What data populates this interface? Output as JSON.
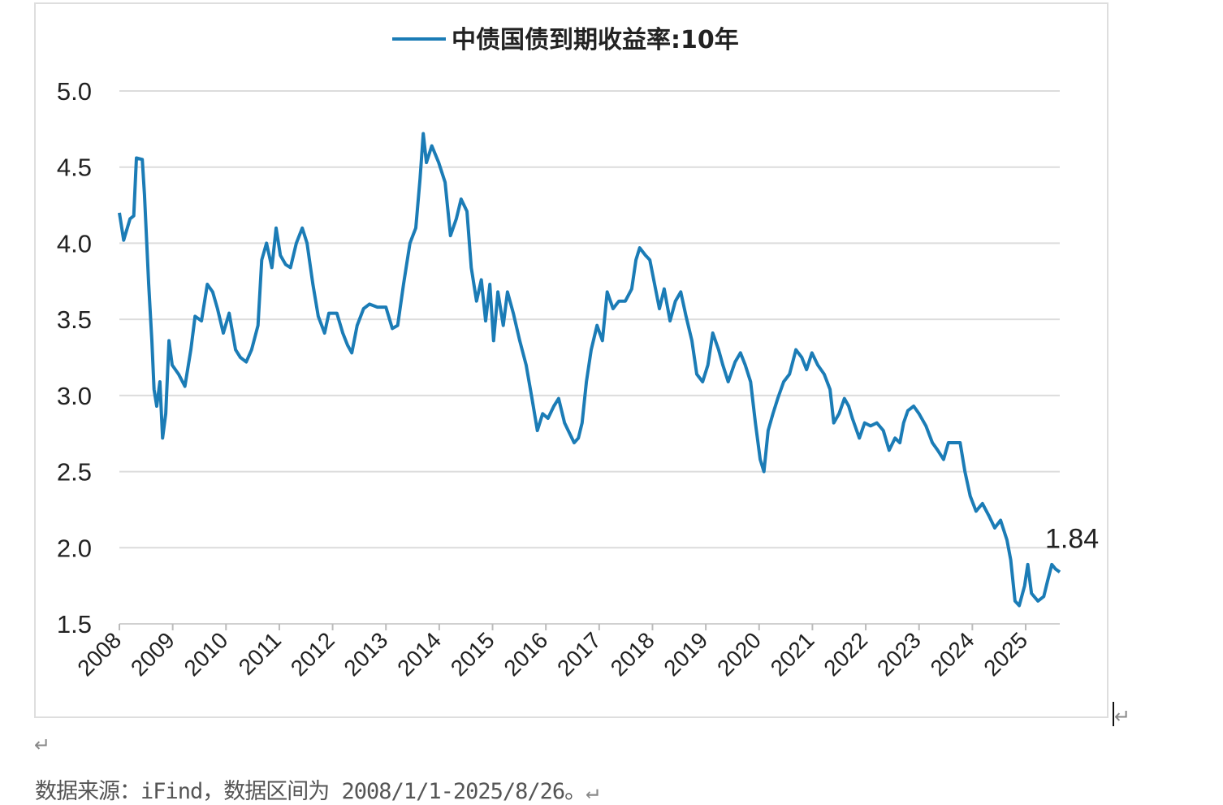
{
  "chart_data": {
    "type": "line",
    "legend": "中债国债到期收益率:10年",
    "legend_position": "top-center",
    "ylim": [
      1.5,
      5.0
    ],
    "yticks": [
      "1.5",
      "2.0",
      "2.5",
      "3.0",
      "3.5",
      "4.0",
      "4.5",
      "5.0"
    ],
    "ytick_values": [
      1.5,
      2.0,
      2.5,
      3.0,
      3.5,
      4.0,
      4.5,
      5.0
    ],
    "xlim": [
      2008,
      2025.64
    ],
    "xticks": [
      "2008",
      "2009",
      "2010",
      "2011",
      "2012",
      "2013",
      "2014",
      "2015",
      "2016",
      "2017",
      "2018",
      "2019",
      "2020",
      "2021",
      "2022",
      "2023",
      "2024",
      "2025"
    ],
    "grid": true,
    "color": "#1b7cb6",
    "annotation": {
      "text": "1.84",
      "x": 2025.64,
      "y": 1.84
    },
    "series": [
      {
        "name": "中债国债到期收益率:10年",
        "x": [
          2008.0,
          2008.08,
          2008.2,
          2008.27,
          2008.32,
          2008.43,
          2008.47,
          2008.55,
          2008.61,
          2008.65,
          2008.7,
          2008.76,
          2008.81,
          2008.87,
          2008.93,
          2008.99,
          2009.11,
          2009.23,
          2009.34,
          2009.42,
          2009.54,
          2009.65,
          2009.75,
          2009.84,
          2009.95,
          2010.06,
          2010.18,
          2010.27,
          2010.38,
          2010.48,
          2010.6,
          2010.67,
          2010.76,
          2010.86,
          2010.94,
          2011.02,
          2011.12,
          2011.21,
          2011.32,
          2011.43,
          2011.52,
          2011.63,
          2011.73,
          2011.85,
          2011.93,
          2012.08,
          2012.19,
          2012.28,
          2012.36,
          2012.46,
          2012.58,
          2012.69,
          2012.84,
          2013.0,
          2013.12,
          2013.22,
          2013.33,
          2013.45,
          2013.56,
          2013.64,
          2013.7,
          2013.76,
          2013.86,
          2013.99,
          2014.11,
          2014.21,
          2014.32,
          2014.41,
          2014.52,
          2014.6,
          2014.7,
          2014.79,
          2014.87,
          2014.95,
          2015.02,
          2015.1,
          2015.2,
          2015.28,
          2015.39,
          2015.51,
          2015.63,
          2015.74,
          2015.84,
          2015.94,
          2016.04,
          2016.15,
          2016.24,
          2016.35,
          2016.42,
          2016.53,
          2016.61,
          2016.68,
          2016.76,
          2016.85,
          2016.96,
          2017.06,
          2017.15,
          2017.26,
          2017.37,
          2017.49,
          2017.61,
          2017.69,
          2017.76,
          2017.87,
          2017.95,
          2018.04,
          2018.13,
          2018.22,
          2018.33,
          2018.43,
          2018.53,
          2018.63,
          2018.74,
          2018.83,
          2018.94,
          2019.04,
          2019.13,
          2019.24,
          2019.32,
          2019.42,
          2019.55,
          2019.65,
          2019.74,
          2019.84,
          2019.93,
          2020.02,
          2020.09,
          2020.17,
          2020.26,
          2020.35,
          2020.46,
          2020.57,
          2020.69,
          2020.8,
          2020.89,
          2020.99,
          2021.1,
          2021.22,
          2021.33,
          2021.4,
          2021.5,
          2021.6,
          2021.68,
          2021.75,
          2021.88,
          2021.98,
          2022.09,
          2022.21,
          2022.33,
          2022.44,
          2022.55,
          2022.64,
          2022.71,
          2022.79,
          2022.9,
          2023.0,
          2023.13,
          2023.25,
          2023.35,
          2023.46,
          2023.55,
          2023.66,
          2023.77,
          2023.86,
          2023.96,
          2024.07,
          2024.19,
          2024.31,
          2024.42,
          2024.53,
          2024.65,
          2024.72,
          2024.8,
          2024.88,
          2024.98,
          2025.04,
          2025.11,
          2025.23,
          2025.34,
          2025.41,
          2025.49,
          2025.56,
          2025.64
        ],
        "y": [
          4.2,
          4.02,
          4.16,
          4.18,
          4.56,
          4.55,
          4.32,
          3.73,
          3.36,
          3.04,
          2.93,
          3.09,
          2.72,
          2.88,
          3.36,
          3.2,
          3.14,
          3.06,
          3.3,
          3.52,
          3.49,
          3.73,
          3.68,
          3.57,
          3.41,
          3.54,
          3.3,
          3.25,
          3.22,
          3.3,
          3.46,
          3.89,
          4.0,
          3.84,
          4.1,
          3.92,
          3.86,
          3.84,
          4.0,
          4.1,
          4.0,
          3.73,
          3.52,
          3.41,
          3.54,
          3.54,
          3.41,
          3.33,
          3.28,
          3.46,
          3.57,
          3.6,
          3.58,
          3.58,
          3.44,
          3.46,
          3.73,
          4.0,
          4.1,
          4.42,
          4.72,
          4.53,
          4.64,
          4.53,
          4.4,
          4.05,
          4.16,
          4.29,
          4.21,
          3.84,
          3.62,
          3.76,
          3.49,
          3.73,
          3.36,
          3.68,
          3.46,
          3.68,
          3.54,
          3.36,
          3.2,
          2.98,
          2.77,
          2.88,
          2.85,
          2.93,
          2.98,
          2.82,
          2.77,
          2.69,
          2.72,
          2.82,
          3.09,
          3.3,
          3.46,
          3.36,
          3.68,
          3.57,
          3.62,
          3.62,
          3.7,
          3.89,
          3.97,
          3.92,
          3.89,
          3.73,
          3.57,
          3.7,
          3.49,
          3.62,
          3.68,
          3.52,
          3.36,
          3.14,
          3.09,
          3.2,
          3.41,
          3.3,
          3.2,
          3.09,
          3.22,
          3.28,
          3.2,
          3.09,
          2.82,
          2.58,
          2.5,
          2.77,
          2.88,
          2.98,
          3.09,
          3.14,
          3.3,
          3.25,
          3.17,
          3.28,
          3.2,
          3.14,
          3.04,
          2.82,
          2.88,
          2.98,
          2.93,
          2.85,
          2.72,
          2.82,
          2.8,
          2.82,
          2.77,
          2.64,
          2.72,
          2.69,
          2.82,
          2.9,
          2.93,
          2.88,
          2.8,
          2.69,
          2.64,
          2.58,
          2.69,
          2.69,
          2.69,
          2.5,
          2.34,
          2.24,
          2.29,
          2.21,
          2.13,
          2.18,
          2.05,
          1.92,
          1.65,
          1.62,
          1.75,
          1.89,
          1.7,
          1.65,
          1.68,
          1.78,
          1.89,
          1.86,
          1.84
        ]
      }
    ]
  },
  "document": {
    "caption": "数据来源：iFind，数据区间为 2008/1/1-2025/8/26。",
    "paragraph_mark": "↵"
  }
}
